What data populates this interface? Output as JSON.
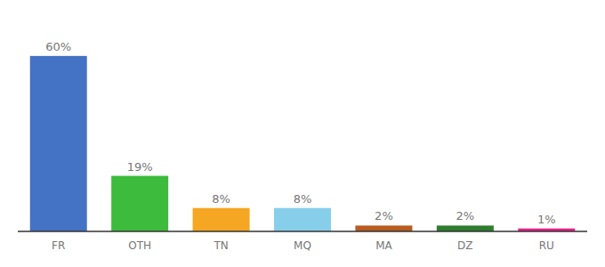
{
  "chart_data": {
    "type": "bar",
    "categories": [
      "FR",
      "OTH",
      "TN",
      "MQ",
      "MA",
      "DZ",
      "RU"
    ],
    "values": [
      60,
      19,
      8,
      8,
      2,
      2,
      1
    ],
    "value_labels": [
      "60%",
      "19%",
      "8%",
      "8%",
      "2%",
      "2%",
      "1%"
    ],
    "colors": [
      "#4472c4",
      "#3dbb3d",
      "#f5a623",
      "#87ceeb",
      "#b85c20",
      "#2d7d2d",
      "#e91e8c"
    ],
    "ylim": [
      0,
      70
    ],
    "data_labels": true,
    "tick_labels": "x",
    "grid": false
  }
}
